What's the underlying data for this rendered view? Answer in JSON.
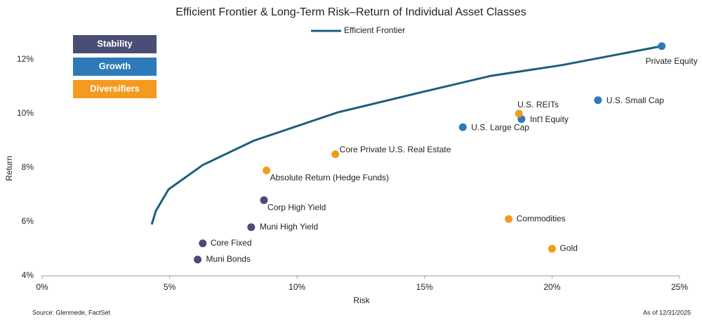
{
  "chart_data": {
    "type": "scatter",
    "title": "Efficient Frontier & Long-Term Risk–Return of Individual Asset Classes",
    "x_label": "Risk",
    "y_label": "Return",
    "source": "Source: Glenmede, FactSet",
    "as_of": "As of 12/31/2025",
    "xlim": [
      0,
      25
    ],
    "ylim": [
      4,
      13
    ],
    "xticks": [
      {
        "value": 0,
        "label": "0%"
      },
      {
        "value": 5,
        "label": "5%"
      },
      {
        "value": 10,
        "label": "10%"
      },
      {
        "value": 15,
        "label": "15%"
      },
      {
        "value": 20,
        "label": "20%"
      },
      {
        "value": 25,
        "label": "25%"
      }
    ],
    "yticks": [
      {
        "value": 4,
        "label": "4%"
      },
      {
        "value": 6,
        "label": "6%"
      },
      {
        "value": 8,
        "label": "8%"
      },
      {
        "value": 10,
        "label": "10%"
      },
      {
        "value": 12,
        "label": "12%"
      }
    ],
    "frontier": {
      "name": "Efficient Frontier",
      "type": "line",
      "color": "#1c5f7c",
      "x": [
        4.3,
        4.46,
        4.96,
        6.3,
        8.3,
        11.6,
        14.9,
        17.6,
        20.4,
        24.3
      ],
      "values": [
        5.9,
        6.4,
        7.2,
        8.1,
        9.0,
        10.05,
        10.8,
        11.4,
        11.8,
        12.5
      ]
    },
    "series": [
      {
        "name": "Stability",
        "color": "#4a4e74",
        "labels": [
          "Corp High Yield",
          "Muni High Yield",
          "Core Fixed",
          "Muni Bonds"
        ],
        "x": [
          8.7,
          8.2,
          6.3,
          6.1
        ],
        "values": [
          6.8,
          5.8,
          5.2,
          4.6
        ]
      },
      {
        "name": "Growth",
        "color": "#2e7ab8",
        "labels": [
          "Private Equity",
          "U.S. Small Cap",
          "Int'l Equity",
          "U.S. Large Cap"
        ],
        "x": [
          24.3,
          21.8,
          18.8,
          16.5
        ],
        "values": [
          12.5,
          10.5,
          9.8,
          9.5
        ]
      },
      {
        "name": "Diversifiers",
        "color": "#f39a1f",
        "labels": [
          "U.S. REITs",
          "Core Private U.S. Real Estate",
          "Absolute Return (Hedge Funds)",
          "Commodities",
          "Gold"
        ],
        "x": [
          18.7,
          11.5,
          8.8,
          18.3,
          20.0
        ],
        "values": [
          10.0,
          8.5,
          7.9,
          6.1,
          5.0
        ]
      }
    ]
  }
}
